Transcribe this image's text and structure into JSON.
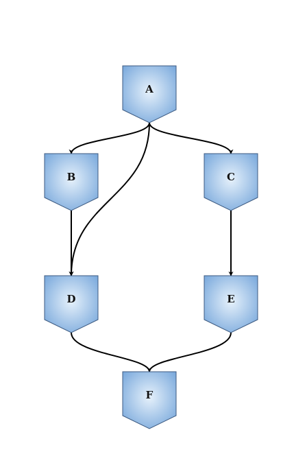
{
  "diagram": {
    "type": "directed-graph",
    "style": {
      "node_fill_light": "#e6f1fb",
      "node_fill_dark": "#7aa9dc",
      "node_stroke": "#3d5a80",
      "edge_color": "#000000"
    },
    "nodes": [
      {
        "id": "A",
        "label": "A"
      },
      {
        "id": "B",
        "label": "B"
      },
      {
        "id": "C",
        "label": "C"
      },
      {
        "id": "D",
        "label": "D"
      },
      {
        "id": "E",
        "label": "E"
      },
      {
        "id": "F",
        "label": "F"
      }
    ],
    "edges": [
      {
        "from": "A",
        "to": "B"
      },
      {
        "from": "A",
        "to": "C"
      },
      {
        "from": "A",
        "to": "D"
      },
      {
        "from": "B",
        "to": "D"
      },
      {
        "from": "C",
        "to": "E"
      },
      {
        "from": "D",
        "to": "F"
      },
      {
        "from": "E",
        "to": "F"
      }
    ]
  }
}
